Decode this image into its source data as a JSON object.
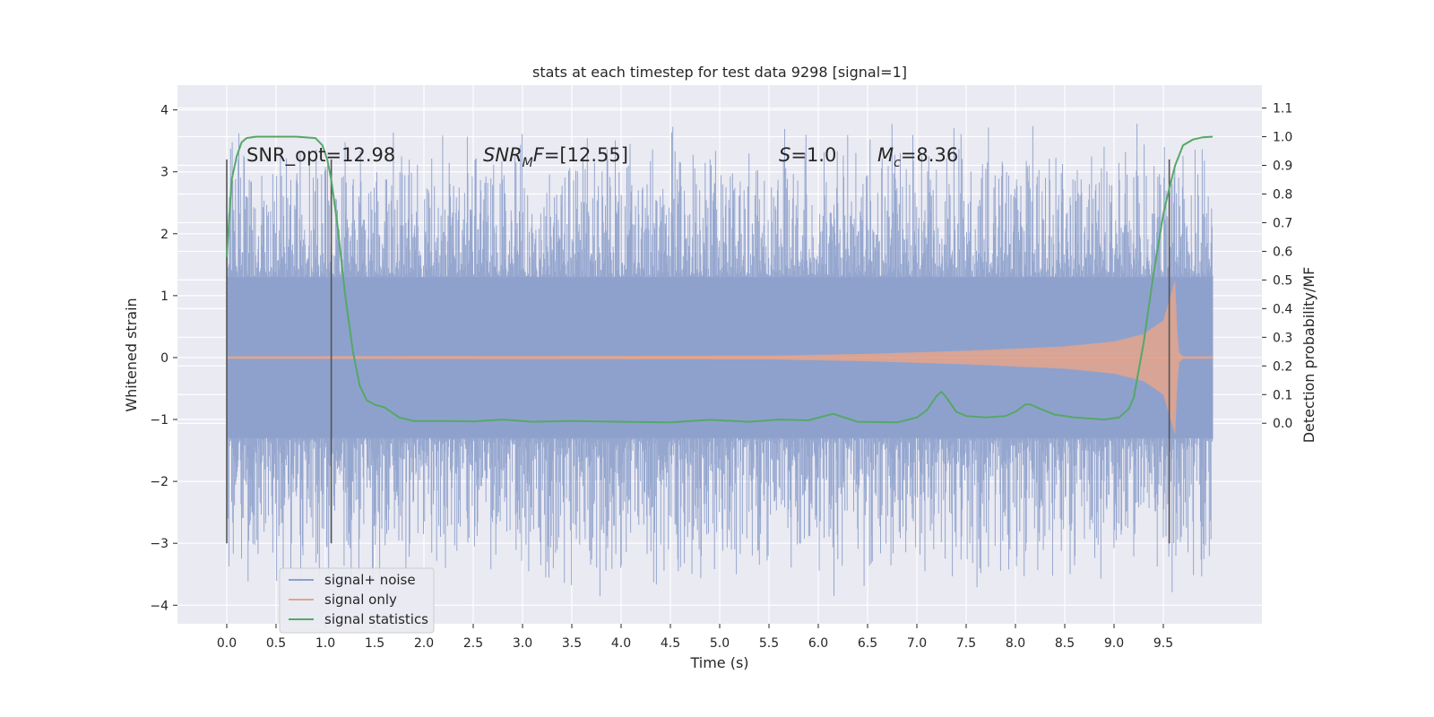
{
  "chart_data": {
    "type": "line",
    "title": "stats at each timestep for test data 9298 [signal=1]",
    "xlabel": "Time (s)",
    "ylabel": "Whitened strain",
    "y2label": "Detection probability/MF",
    "xlim": [
      -0.5,
      10.5
    ],
    "ylim": [
      -4.3,
      4.4
    ],
    "y2lim": [
      -0.7,
      1.18
    ],
    "x_ticks": [
      "0.0",
      "0.5",
      "1.0",
      "1.5",
      "2.0",
      "2.5",
      "3.0",
      "3.5",
      "4.0",
      "4.5",
      "5.0",
      "5.5",
      "6.0",
      "6.5",
      "7.0",
      "7.5",
      "8.0",
      "8.5",
      "9.0",
      "9.5"
    ],
    "y_ticks": [
      "4",
      "3",
      "2",
      "1",
      "0",
      "−1",
      "−2",
      "−3",
      "−4"
    ],
    "y2_ticks": [
      "1.1",
      "1.0",
      "0.9",
      "0.8",
      "0.7",
      "0.6",
      "0.5",
      "0.4",
      "0.3",
      "0.2",
      "0.1",
      "0.0"
    ],
    "grid": true,
    "legend_position": "lower-left",
    "annotations": [
      {
        "text": "SNR_opt=12.98",
        "x": 0.2,
        "y": 3.2
      },
      {
        "text": "SNR",
        "sub": "M",
        "tail": "F=[12.55]",
        "x": 2.6,
        "y": 3.2
      },
      {
        "text": "S",
        "tail": "=1.0",
        "x": 5.6,
        "y": 3.2
      },
      {
        "text": "M",
        "sub": "c",
        "tail": "=8.36",
        "x": 6.6,
        "y": 3.2
      }
    ],
    "vlines_x": [
      0.0,
      1.06,
      9.56
    ],
    "vlines_range": [
      -3.0,
      3.2
    ],
    "series": [
      {
        "name": "signal+ noise",
        "color": "#8da0cb",
        "x_range": [
          0.0,
          10.0
        ],
        "core_amplitude": 1.3,
        "peak_amplitude": 3.3
      },
      {
        "name": "signal only",
        "color": "#e4a48c",
        "envelope": {
          "x": [
            0.0,
            5.5,
            6.5,
            7.5,
            8.5,
            9.0,
            9.3,
            9.5,
            9.62,
            9.65,
            9.7,
            10.0
          ],
          "amp": [
            0.02,
            0.03,
            0.06,
            0.11,
            0.18,
            0.26,
            0.38,
            0.6,
            1.25,
            0.1,
            0.02,
            0.02
          ]
        }
      },
      {
        "name": "signal statistics",
        "color": "#55a868",
        "axis": "right",
        "x": [
          0.0,
          0.05,
          0.1,
          0.15,
          0.2,
          0.3,
          0.5,
          0.7,
          0.9,
          0.97,
          1.02,
          1.06,
          1.12,
          1.2,
          1.28,
          1.35,
          1.42,
          1.5,
          1.6,
          1.75,
          1.9,
          2.2,
          2.5,
          2.8,
          3.1,
          3.5,
          4.0,
          4.5,
          4.9,
          5.3,
          5.6,
          5.9,
          6.15,
          6.4,
          6.8,
          7.0,
          7.1,
          7.2,
          7.25,
          7.3,
          7.4,
          7.5,
          7.7,
          7.9,
          8.0,
          8.1,
          8.15,
          8.25,
          8.4,
          8.6,
          8.9,
          9.05,
          9.15,
          9.2,
          9.3,
          9.4,
          9.5,
          9.56,
          9.62,
          9.7,
          9.8,
          9.9,
          10.0
        ],
        "values": [
          0.58,
          0.85,
          0.93,
          0.98,
          0.995,
          1.0,
          1.0,
          1.0,
          0.995,
          0.97,
          0.92,
          0.85,
          0.7,
          0.45,
          0.25,
          0.13,
          0.08,
          0.065,
          0.055,
          0.02,
          0.008,
          0.008,
          0.006,
          0.013,
          0.005,
          0.008,
          0.005,
          0.003,
          0.012,
          0.005,
          0.013,
          0.01,
          0.033,
          0.005,
          0.003,
          0.02,
          0.045,
          0.095,
          0.11,
          0.09,
          0.04,
          0.025,
          0.02,
          0.025,
          0.04,
          0.065,
          0.066,
          0.05,
          0.03,
          0.02,
          0.013,
          0.02,
          0.05,
          0.09,
          0.28,
          0.52,
          0.73,
          0.82,
          0.9,
          0.97,
          0.99,
          0.998,
          1.0
        ]
      }
    ]
  }
}
